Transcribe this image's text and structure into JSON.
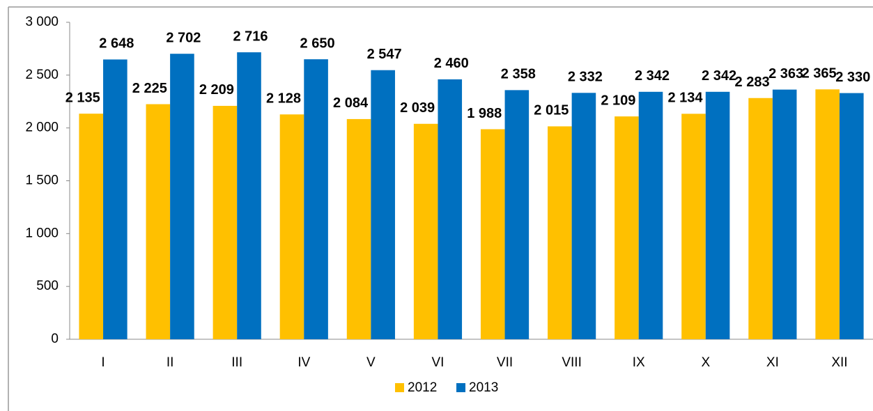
{
  "chart_data": {
    "type": "bar",
    "categories": [
      "I",
      "II",
      "III",
      "IV",
      "V",
      "VI",
      "VII",
      "VIII",
      "IX",
      "X",
      "XI",
      "XII"
    ],
    "series": [
      {
        "name": "2012",
        "color": "#ffc000",
        "values": [
          2135,
          2225,
          2209,
          2128,
          2084,
          2039,
          1988,
          2015,
          2109,
          2134,
          2283,
          2365
        ],
        "value_labels": [
          "2 135",
          "2 225",
          "2 209",
          "2 128",
          "2 084",
          "2 039",
          "1 988",
          "2 015",
          "2 109",
          "2 134",
          "2 283",
          "2 365"
        ]
      },
      {
        "name": "2013",
        "color": "#0070c0",
        "values": [
          2648,
          2702,
          2716,
          2650,
          2547,
          2460,
          2358,
          2332,
          2342,
          2342,
          2363,
          2330
        ],
        "value_labels": [
          "2 648",
          "2 702",
          "2 716",
          "2 650",
          "2 547",
          "2 460",
          "2 358",
          "2 332",
          "2 342",
          "2 342",
          "2 363",
          "2 330"
        ]
      }
    ],
    "ylim": [
      0,
      3000
    ],
    "yticks": [
      0,
      500,
      {
        "value": 1000,
        "label": "1 000"
      },
      {
        "value": 1500,
        "label": "1 500"
      },
      {
        "value": 2000,
        "label": "2 000"
      },
      {
        "value": 2500,
        "label": "2 500"
      },
      {
        "value": 3000,
        "label": "3 000"
      }
    ],
    "grid": false,
    "legend": "bottom"
  }
}
